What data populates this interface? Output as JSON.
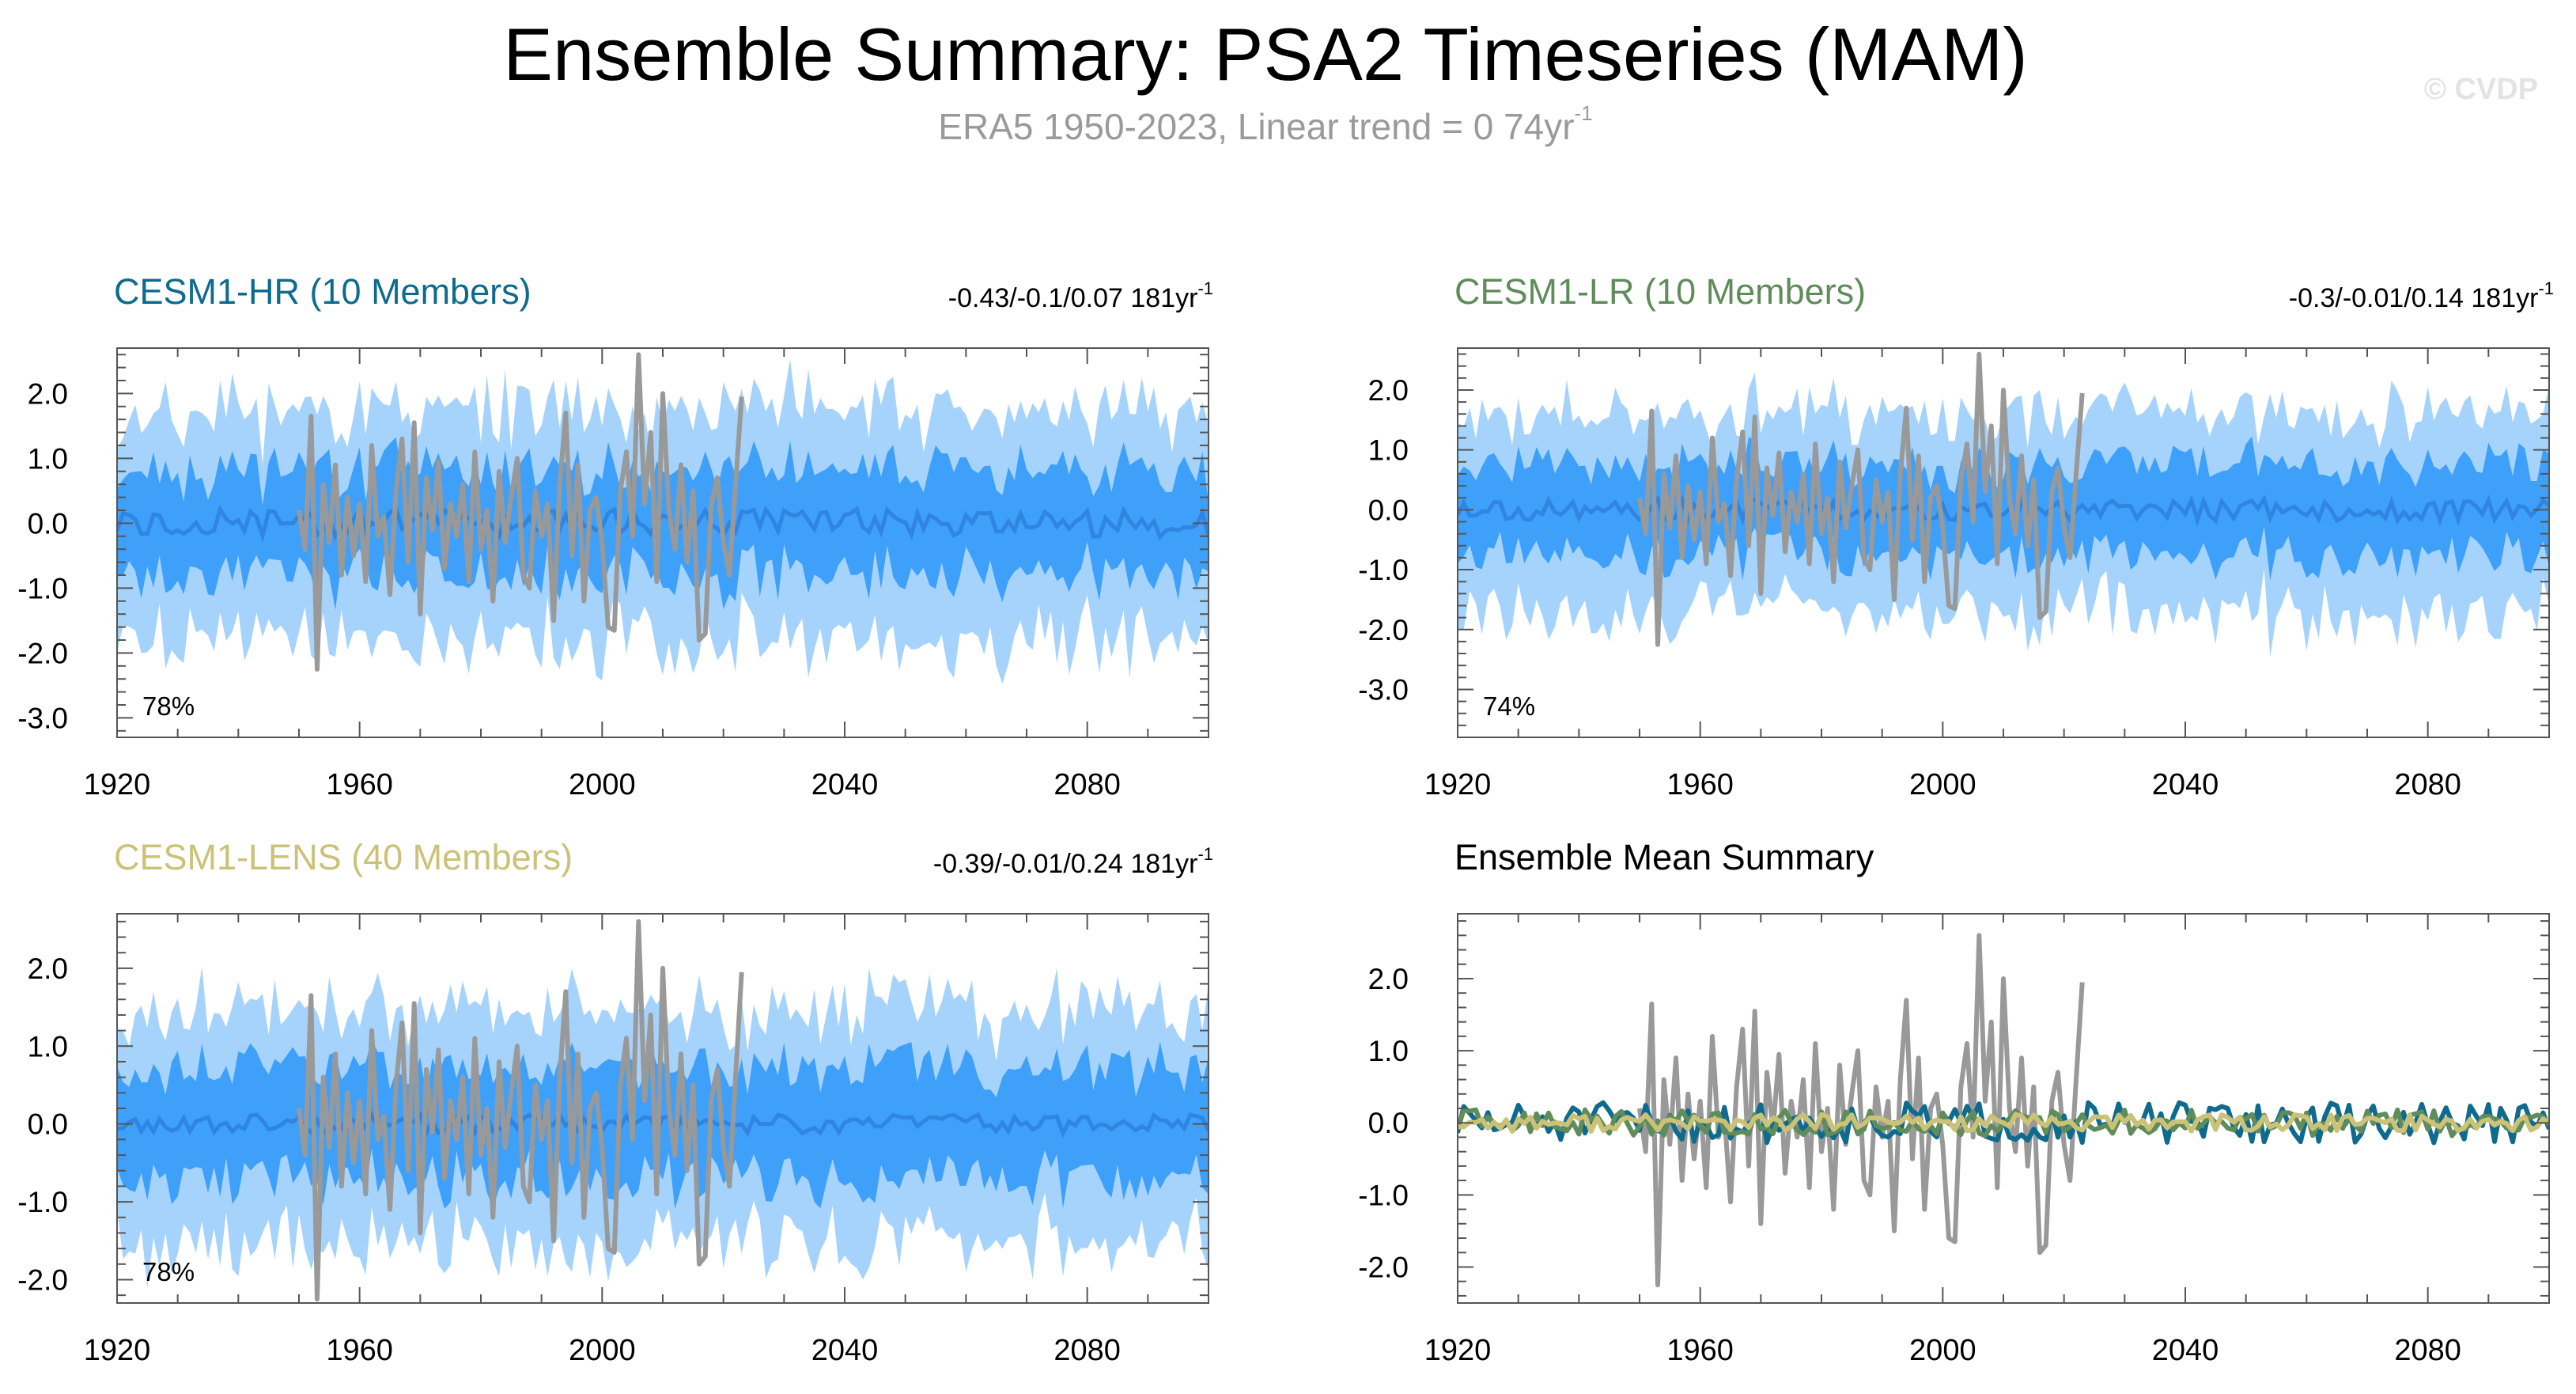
{
  "title": "Ensemble Summary: PSA2 Timeseries (MAM)",
  "subtitle": {
    "text": "ERA5 1950-2023, Linear trend = 0 74yr",
    "sup": "-1"
  },
  "copyright": "© CVDP",
  "colors": {
    "band_outer": "#a6d3fb",
    "band_inner": "#3ea0f9",
    "ens_mean": "#2f85e0",
    "obs": "#999999",
    "hr": "#0e6b8d",
    "lr": "#5f8c5a",
    "lens": "#cbc278"
  },
  "chart_data": [
    {
      "id": "hr",
      "type": "area",
      "title": "CESM1-HR (10 Members)",
      "title_color": "#0e6b8d",
      "trend": {
        "text": "-0.43/-0.1/0.07 181yr",
        "sup": "-1"
      },
      "percent": "78%",
      "xlim": [
        1920,
        2100
      ],
      "ylim": [
        -3.3,
        2.7
      ],
      "xticks": [
        1920,
        1960,
        2000,
        2040,
        2080
      ],
      "xticklabels": [
        "1920",
        "1960",
        "2000",
        "2040",
        "2080"
      ],
      "yticks": [
        2.0,
        1.0,
        0.0,
        -1.0,
        -2.0,
        -3.0
      ],
      "yticklabels": [
        "2.0",
        "1.0",
        "0.0",
        "-1.0",
        "-2.0",
        "-3.0"
      ],
      "inner_amp": 0.85,
      "outer_amp": 1.7,
      "mean_amp": 0.22,
      "seed": 11
    },
    {
      "id": "lr",
      "type": "area",
      "title": "CESM1-LR (10 Members)",
      "title_color": "#5f8c5a",
      "trend": {
        "text": "-0.3/-0.01/0.14 181yr",
        "sup": "-1"
      },
      "percent": "74%",
      "xlim": [
        1920,
        2100
      ],
      "ylim": [
        -3.8,
        2.7
      ],
      "xticks": [
        1920,
        1960,
        2000,
        2040,
        2080
      ],
      "xticklabels": [
        "1920",
        "1960",
        "2000",
        "2040",
        "2080"
      ],
      "yticks": [
        2.0,
        1.0,
        0.0,
        -1.0,
        -2.0,
        -3.0
      ],
      "yticklabels": [
        "2.0",
        "1.0",
        "0.0",
        "-1.0",
        "-2.0",
        "-3.0"
      ],
      "inner_amp": 0.8,
      "outer_amp": 1.6,
      "mean_amp": 0.18,
      "seed": 23
    },
    {
      "id": "lens",
      "type": "area",
      "title": "CESM1-LENS (40 Members)",
      "title_color": "#cbc278",
      "trend": {
        "text": "-0.39/-0.01/0.24 181yr",
        "sup": "-1"
      },
      "percent": "78%",
      "xlim": [
        1920,
        2100
      ],
      "ylim": [
        -2.3,
        2.7
      ],
      "xticks": [
        1920,
        1960,
        2000,
        2040,
        2080
      ],
      "xticklabels": [
        "1920",
        "1960",
        "2000",
        "2040",
        "2080"
      ],
      "yticks": [
        2.0,
        1.0,
        0.0,
        -1.0,
        -2.0
      ],
      "yticklabels": [
        "2.0",
        "1.0",
        "0.0",
        "-1.0",
        "-2.0"
      ],
      "inner_amp": 0.75,
      "outer_amp": 1.4,
      "mean_amp": 0.12,
      "seed": 37
    },
    {
      "id": "summary",
      "type": "line",
      "title": "Ensemble Mean Summary",
      "title_color": "#000000",
      "xlim": [
        1920,
        2100
      ],
      "ylim": [
        -2.5,
        2.9
      ],
      "xticks": [
        1920,
        1960,
        2000,
        2040,
        2080
      ],
      "xticklabels": [
        "1920",
        "1960",
        "2000",
        "2040",
        "2080"
      ],
      "yticks": [
        2.0,
        1.0,
        0.0,
        -1.0,
        -2.0
      ],
      "yticklabels": [
        "2.0",
        "1.0",
        "0.0",
        "-1.0",
        "-2.0"
      ],
      "series": [
        {
          "name": "CESM1-HR",
          "color": "#0e6b8d",
          "amp": 0.28,
          "seed": 51
        },
        {
          "name": "CESM1-LR",
          "color": "#5f8c5a",
          "amp": 0.18,
          "seed": 63
        },
        {
          "name": "CESM1-LENS",
          "color": "#cbc278",
          "amp": 0.12,
          "seed": 77
        }
      ]
    }
  ],
  "obs": {
    "name": "ERA5",
    "start_year": 1950,
    "values": [
      0.2,
      -0.4,
      1.65,
      -2.25,
      0.6,
      -0.3,
      0.9,
      -0.8,
      0.4,
      -0.5,
      0.3,
      -0.9,
      1.2,
      -0.2,
      0.1,
      -1.1,
      0.5,
      1.3,
      -0.6,
      1.55,
      -1.4,
      0.7,
      -0.1,
      0.95,
      -0.7,
      0.3,
      -0.2,
      0.6,
      -0.9,
      1.1,
      -0.4,
      0.2,
      -1.2,
      0.8,
      -0.3,
      0.4,
      1.0,
      -0.8,
      -1.0,
      0.5,
      -0.2,
      0.3,
      -1.5,
      0.6,
      1.7,
      -0.5,
      0.9,
      -1.2,
      0.2,
      0.4,
      -0.3,
      -1.6,
      -1.65,
      0.5,
      1.1,
      -0.2,
      2.6,
      0.3,
      1.4,
      -0.9,
      2.0,
      0.2,
      -0.4,
      0.9,
      -0.6,
      0.5,
      -1.8,
      -1.7,
      0.3,
      0.7,
      -0.3,
      -0.8,
      0.6,
      1.95
    ]
  }
}
